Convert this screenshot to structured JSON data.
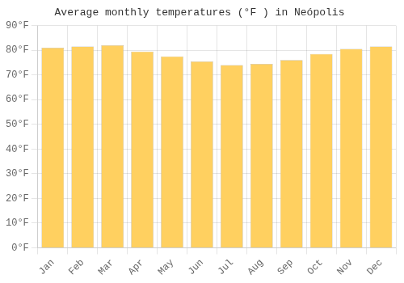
{
  "chart_data": {
    "type": "bar",
    "title": "Average monthly temperatures (°F ) in Neópolis",
    "categories": [
      "Jan",
      "Feb",
      "Mar",
      "Apr",
      "May",
      "Jun",
      "Jul",
      "Aug",
      "Sep",
      "Oct",
      "Nov",
      "Dec"
    ],
    "values": [
      81,
      81.5,
      82,
      79.5,
      77.5,
      75.5,
      74,
      74.5,
      76,
      78.5,
      80.5,
      81.5
    ],
    "color": "#FFD060",
    "ylim": [
      0,
      90
    ],
    "yticks": [
      {
        "value": 0,
        "label": "0°F"
      },
      {
        "value": 10,
        "label": "10°F"
      },
      {
        "value": 20,
        "label": "20°F"
      },
      {
        "value": 30,
        "label": "30°F"
      },
      {
        "value": 40,
        "label": "40°F"
      },
      {
        "value": 50,
        "label": "50°F"
      },
      {
        "value": 60,
        "label": "60°F"
      },
      {
        "value": 70,
        "label": "70°F"
      },
      {
        "value": 80,
        "label": "80°F"
      },
      {
        "value": 90,
        "label": "90°F"
      }
    ],
    "grid": true
  }
}
